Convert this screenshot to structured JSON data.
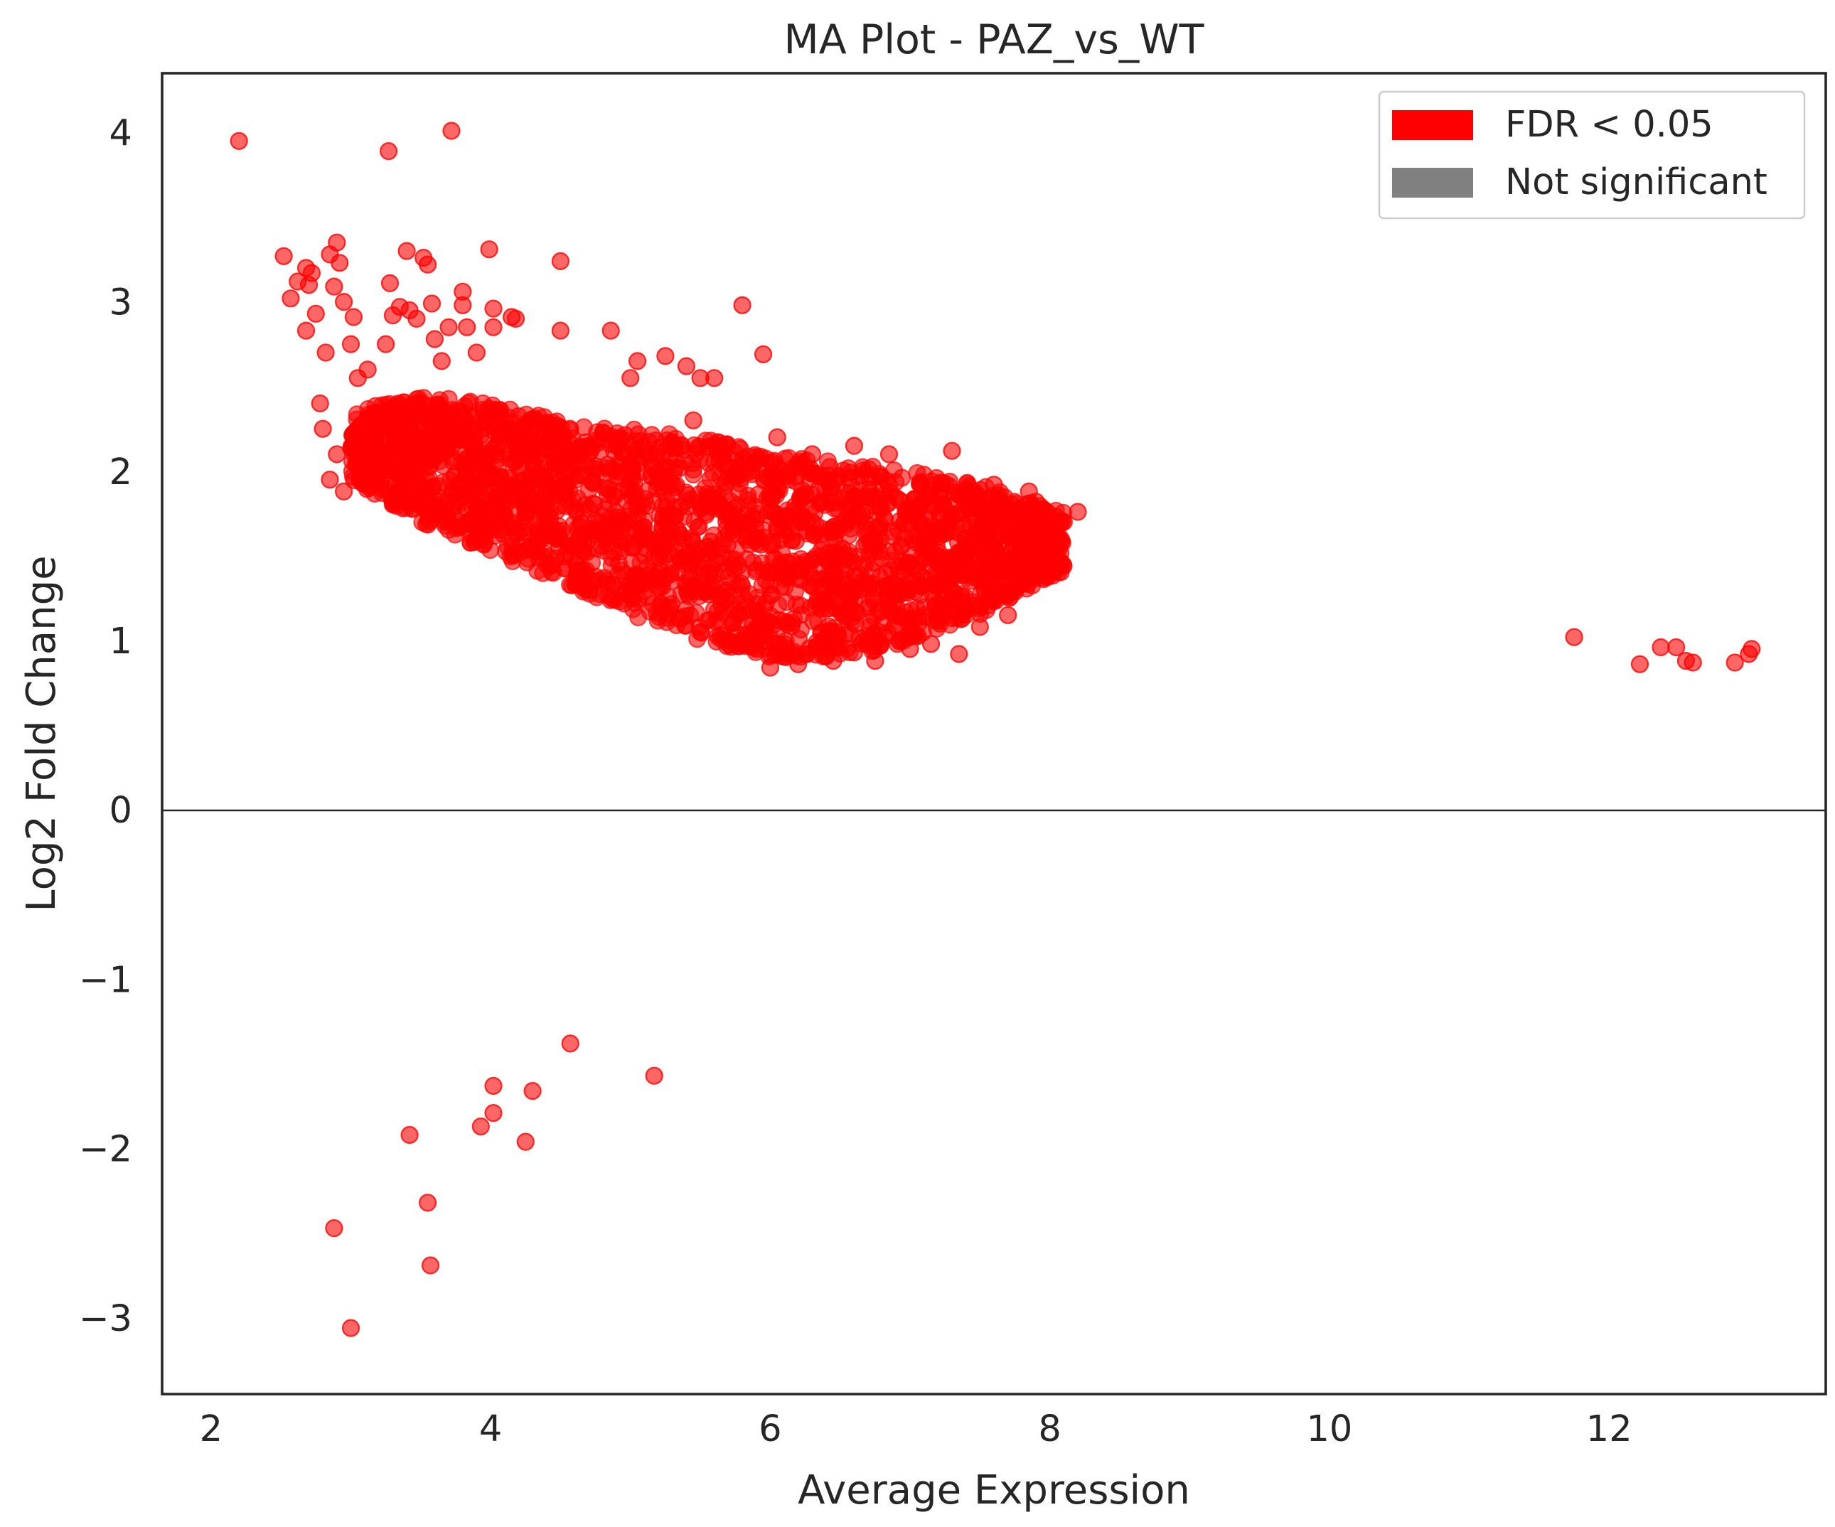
{
  "chart_data": {
    "type": "scatter",
    "title": "MA Plot - PAZ_vs_WT",
    "xlabel": "Average Expression",
    "ylabel": "Log2 Fold Change",
    "xlim": [
      1.65,
      13.55
    ],
    "ylim": [
      -3.45,
      4.35
    ],
    "xticks": [
      2,
      4,
      6,
      8,
      10,
      12
    ],
    "xtick_labels": [
      "2",
      "4",
      "6",
      "8",
      "10",
      "12"
    ],
    "yticks": [
      -3,
      -2,
      -1,
      0,
      1,
      2,
      3,
      4
    ],
    "ytick_labels": [
      "−3",
      "−2",
      "−1",
      "0",
      "1",
      "2",
      "3",
      "4"
    ],
    "grid": false,
    "legend_position": "top-right",
    "reference_line_y": 0,
    "legend": [
      {
        "label": "FDR < 0.05",
        "color": "#ff0000"
      },
      {
        "label": "Not significant",
        "color": "#808080"
      }
    ],
    "dense_region": {
      "description_of_mass": "approx. thousands of significant points",
      "x_range": [
        3.0,
        8.1
      ],
      "lower_edge": [
        [
          3.0,
          1.95
        ],
        [
          3.5,
          1.7
        ],
        [
          4.0,
          1.52
        ],
        [
          4.5,
          1.35
        ],
        [
          5.0,
          1.15
        ],
        [
          5.5,
          1.0
        ],
        [
          6.0,
          0.9
        ],
        [
          6.5,
          0.9
        ],
        [
          7.0,
          0.98
        ],
        [
          7.5,
          1.15
        ],
        [
          8.0,
          1.38
        ]
      ],
      "upper_edge": [
        [
          3.0,
          2.35
        ],
        [
          3.5,
          2.45
        ],
        [
          4.0,
          2.4
        ],
        [
          4.5,
          2.3
        ],
        [
          5.0,
          2.25
        ],
        [
          5.5,
          2.2
        ],
        [
          6.0,
          2.1
        ],
        [
          6.5,
          2.05
        ],
        [
          7.0,
          2.0
        ],
        [
          7.5,
          1.92
        ],
        [
          8.0,
          1.78
        ]
      ]
    },
    "series": [
      {
        "name": "FDR < 0.05",
        "color": "#ff0000",
        "points": [
          [
            2.2,
            3.95
          ],
          [
            3.27,
            3.89
          ],
          [
            3.72,
            4.01
          ],
          [
            2.52,
            3.27
          ],
          [
            2.57,
            3.02
          ],
          [
            2.62,
            3.12
          ],
          [
            2.68,
            3.2
          ],
          [
            2.7,
            3.1
          ],
          [
            2.72,
            3.17
          ],
          [
            2.68,
            2.83
          ],
          [
            2.75,
            2.93
          ],
          [
            2.82,
            2.7
          ],
          [
            2.85,
            3.28
          ],
          [
            2.9,
            3.35
          ],
          [
            2.92,
            3.23
          ],
          [
            2.88,
            3.09
          ],
          [
            2.95,
            3.0
          ],
          [
            3.0,
            2.75
          ],
          [
            3.02,
            2.91
          ],
          [
            3.12,
            2.6
          ],
          [
            3.25,
            2.75
          ],
          [
            3.28,
            3.11
          ],
          [
            3.3,
            2.92
          ],
          [
            3.35,
            2.97
          ],
          [
            3.4,
            3.3
          ],
          [
            3.42,
            2.95
          ],
          [
            3.47,
            2.9
          ],
          [
            3.52,
            3.26
          ],
          [
            3.55,
            3.22
          ],
          [
            3.58,
            2.99
          ],
          [
            3.6,
            2.78
          ],
          [
            3.65,
            2.65
          ],
          [
            3.7,
            2.85
          ],
          [
            3.8,
            3.06
          ],
          [
            3.8,
            2.98
          ],
          [
            3.83,
            2.85
          ],
          [
            3.9,
            2.7
          ],
          [
            3.99,
            3.31
          ],
          [
            4.02,
            2.96
          ],
          [
            4.02,
            2.85
          ],
          [
            4.15,
            2.91
          ],
          [
            4.18,
            2.9
          ],
          [
            4.5,
            3.24
          ],
          [
            4.5,
            2.83
          ],
          [
            4.86,
            2.83
          ],
          [
            5.0,
            2.55
          ],
          [
            5.05,
            2.65
          ],
          [
            5.25,
            2.68
          ],
          [
            5.4,
            2.62
          ],
          [
            5.5,
            2.55
          ],
          [
            5.45,
            2.3
          ],
          [
            5.8,
            2.98
          ],
          [
            5.6,
            2.55
          ],
          [
            5.95,
            2.69
          ],
          [
            6.05,
            2.2
          ],
          [
            6.3,
            2.1
          ],
          [
            6.6,
            2.15
          ],
          [
            6.85,
            2.1
          ],
          [
            7.3,
            2.12
          ],
          [
            2.78,
            2.4
          ],
          [
            2.8,
            2.25
          ],
          [
            2.85,
            1.95
          ],
          [
            2.9,
            2.1
          ],
          [
            2.95,
            1.88
          ],
          [
            3.05,
            2.55
          ],
          [
            7.6,
            1.92
          ],
          [
            7.85,
            1.88
          ],
          [
            7.9,
            1.82
          ],
          [
            8.1,
            1.7
          ],
          [
            8.2,
            1.76
          ],
          [
            8.0,
            1.48
          ],
          [
            7.95,
            1.4
          ],
          [
            7.7,
            1.15
          ],
          [
            7.5,
            1.08
          ],
          [
            7.35,
            0.92
          ],
          [
            7.15,
            0.98
          ],
          [
            7.0,
            0.95
          ],
          [
            6.75,
            0.88
          ],
          [
            6.6,
            0.93
          ],
          [
            6.45,
            0.88
          ],
          [
            6.2,
            0.86
          ],
          [
            6.0,
            0.84
          ],
          [
            5.9,
            0.95
          ],
          [
            5.7,
            1.0
          ],
          [
            5.5,
            1.05
          ],
          [
            11.75,
            1.02
          ],
          [
            12.22,
            0.86
          ],
          [
            12.37,
            0.96
          ],
          [
            12.48,
            0.96
          ],
          [
            12.55,
            0.88
          ],
          [
            12.6,
            0.87
          ],
          [
            12.9,
            0.87
          ],
          [
            13.0,
            0.92
          ],
          [
            13.02,
            0.95
          ],
          [
            4.57,
            -1.38
          ],
          [
            5.17,
            -1.57
          ],
          [
            4.02,
            -1.63
          ],
          [
            4.3,
            -1.66
          ],
          [
            4.02,
            -1.79
          ],
          [
            3.93,
            -1.87
          ],
          [
            3.42,
            -1.92
          ],
          [
            4.25,
            -1.96
          ],
          [
            3.55,
            -2.32
          ],
          [
            2.88,
            -2.47
          ],
          [
            3.57,
            -2.69
          ],
          [
            3.0,
            -3.06
          ]
        ]
      },
      {
        "name": "Not significant",
        "color": "#808080",
        "points": []
      }
    ]
  }
}
